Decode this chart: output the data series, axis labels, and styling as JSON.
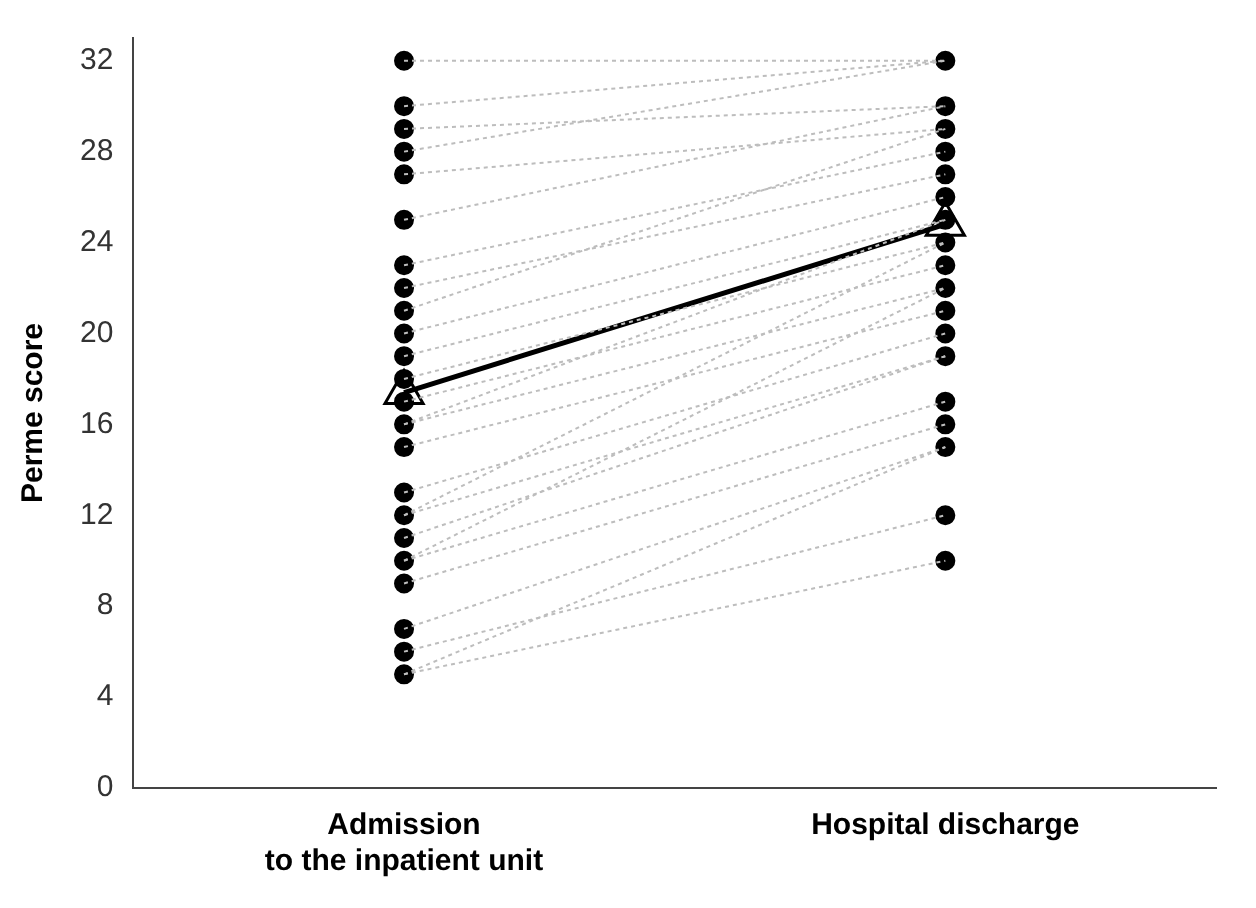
{
  "chart_data": {
    "type": "line",
    "ylabel": "Perme score",
    "categories": [
      "Admission\nto the inpatient unit",
      "Hospital discharge"
    ],
    "ylim": [
      0,
      33
    ],
    "yticks": [
      0,
      4,
      8,
      12,
      16,
      20,
      24,
      28,
      32
    ],
    "grid": false,
    "legend": false,
    "series": [
      {
        "type": "line",
        "color": "#bdbdbd",
        "line_style": "dotted",
        "values": [
          32,
          32
        ]
      },
      {
        "type": "line",
        "color": "#bdbdbd",
        "line_style": "dotted",
        "values": [
          30,
          32
        ]
      },
      {
        "type": "line",
        "color": "#bdbdbd",
        "line_style": "dotted",
        "values": [
          29,
          30
        ]
      },
      {
        "type": "line",
        "color": "#bdbdbd",
        "line_style": "dotted",
        "values": [
          28,
          32
        ]
      },
      {
        "type": "line",
        "color": "#bdbdbd",
        "line_style": "dotted",
        "values": [
          27,
          29
        ]
      },
      {
        "type": "line",
        "color": "#bdbdbd",
        "line_style": "dotted",
        "values": [
          25,
          30
        ]
      },
      {
        "type": "line",
        "color": "#bdbdbd",
        "line_style": "dotted",
        "values": [
          23,
          28
        ]
      },
      {
        "type": "line",
        "color": "#bdbdbd",
        "line_style": "dotted",
        "values": [
          22,
          27
        ]
      },
      {
        "type": "line",
        "color": "#bdbdbd",
        "line_style": "dotted",
        "values": [
          21,
          29
        ]
      },
      {
        "type": "line",
        "color": "#bdbdbd",
        "line_style": "dotted",
        "values": [
          20,
          26
        ]
      },
      {
        "type": "line",
        "color": "#bdbdbd",
        "line_style": "dotted",
        "values": [
          19,
          25
        ]
      },
      {
        "type": "line",
        "color": "#bdbdbd",
        "line_style": "dotted",
        "values": [
          18,
          24
        ]
      },
      {
        "type": "line",
        "color": "#bdbdbd",
        "line_style": "dotted",
        "values": [
          17,
          23
        ]
      },
      {
        "type": "line",
        "color": "#bdbdbd",
        "line_style": "dotted",
        "values": [
          16,
          22
        ]
      },
      {
        "type": "line",
        "color": "#bdbdbd",
        "line_style": "dotted",
        "values": [
          15,
          21
        ]
      },
      {
        "type": "line",
        "color": "#bdbdbd",
        "line_style": "dotted",
        "values": [
          13,
          20
        ]
      },
      {
        "type": "line",
        "color": "#bdbdbd",
        "line_style": "dotted",
        "values": [
          12,
          19
        ]
      },
      {
        "type": "line",
        "color": "#bdbdbd",
        "line_style": "dotted",
        "values": [
          11,
          19
        ]
      },
      {
        "type": "line",
        "color": "#bdbdbd",
        "line_style": "dotted",
        "values": [
          10,
          17
        ]
      },
      {
        "type": "line",
        "color": "#bdbdbd",
        "line_style": "dotted",
        "values": [
          9,
          16
        ]
      },
      {
        "type": "line",
        "color": "#bdbdbd",
        "line_style": "dotted",
        "values": [
          7,
          15
        ]
      },
      {
        "type": "line",
        "color": "#bdbdbd",
        "line_style": "dotted",
        "values": [
          6,
          12
        ]
      },
      {
        "type": "line",
        "color": "#bdbdbd",
        "line_style": "dotted",
        "values": [
          5,
          10
        ]
      },
      {
        "type": "line",
        "color": "#bdbdbd",
        "line_style": "dotted",
        "values": [
          16,
          25
        ]
      },
      {
        "type": "line",
        "color": "#bdbdbd",
        "line_style": "dotted",
        "values": [
          12,
          24
        ]
      },
      {
        "type": "line",
        "color": "#bdbdbd",
        "line_style": "dotted",
        "values": [
          10,
          22
        ]
      },
      {
        "type": "line",
        "color": "#bdbdbd",
        "line_style": "dotted",
        "values": [
          5,
          15
        ]
      },
      {
        "type": "scatter",
        "color": "#000000",
        "marker": "circle",
        "x": [
          "Admission\nto the inpatient unit",
          "Admission\nto the inpatient unit",
          "Admission\nto the inpatient unit",
          "Admission\nto the inpatient unit",
          "Admission\nto the inpatient unit",
          "Admission\nto the inpatient unit",
          "Admission\nto the inpatient unit",
          "Admission\nto the inpatient unit",
          "Admission\nto the inpatient unit",
          "Admission\nto the inpatient unit",
          "Admission\nto the inpatient unit",
          "Admission\nto the inpatient unit",
          "Admission\nto the inpatient unit",
          "Admission\nto the inpatient unit",
          "Admission\nto the inpatient unit",
          "Admission\nto the inpatient unit",
          "Admission\nto the inpatient unit",
          "Admission\nto the inpatient unit",
          "Admission\nto the inpatient unit",
          "Admission\nto the inpatient unit",
          "Admission\nto the inpatient unit",
          "Admission\nto the inpatient unit",
          "Admission\nto the inpatient unit"
        ],
        "values": [
          32,
          30,
          29,
          28,
          27,
          25,
          23,
          22,
          21,
          20,
          19,
          18,
          17,
          16,
          15,
          13,
          12,
          11,
          10,
          9,
          7,
          6,
          5
        ]
      },
      {
        "type": "scatter",
        "color": "#000000",
        "marker": "circle",
        "x": [
          "Hospital discharge",
          "Hospital discharge",
          "Hospital discharge",
          "Hospital discharge",
          "Hospital discharge",
          "Hospital discharge",
          "Hospital discharge",
          "Hospital discharge",
          "Hospital discharge",
          "Hospital discharge",
          "Hospital discharge",
          "Hospital discharge",
          "Hospital discharge",
          "Hospital discharge",
          "Hospital discharge",
          "Hospital discharge",
          "Hospital discharge",
          "Hospital discharge"
        ],
        "values": [
          32,
          30,
          29,
          28,
          27,
          26,
          25,
          24,
          23,
          22,
          21,
          20,
          19,
          17,
          16,
          15,
          12,
          10
        ]
      },
      {
        "type": "line",
        "color": "#000000",
        "line_style": "solid",
        "marker": "triangle",
        "values": [
          17.4,
          24.8
        ]
      }
    ]
  }
}
